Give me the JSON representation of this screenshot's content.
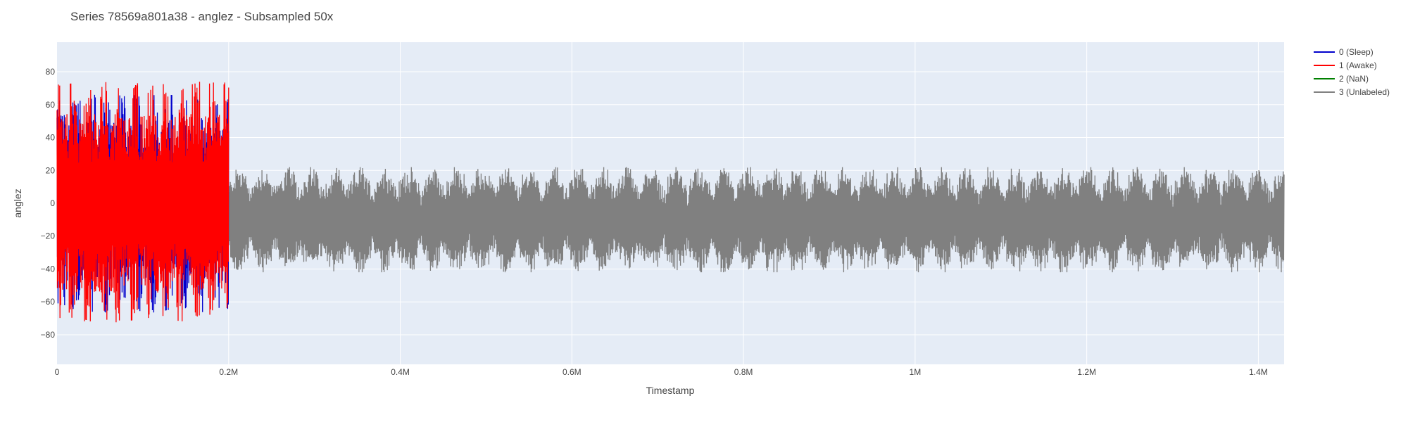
{
  "chart_data": {
    "type": "line",
    "title": "Series 78569a801a38 - anglez - Subsampled 50x",
    "xlabel": "Timestamp",
    "ylabel": "anglez",
    "xlim": [
      0,
      1430000
    ],
    "ylim": [
      -98,
      98
    ],
    "x_ticks": [
      {
        "value": 0,
        "label": "0"
      },
      {
        "value": 200000,
        "label": "0.2M"
      },
      {
        "value": 400000,
        "label": "0.4M"
      },
      {
        "value": 600000,
        "label": "0.6M"
      },
      {
        "value": 800000,
        "label": "0.8M"
      },
      {
        "value": 1000000,
        "label": "1M"
      },
      {
        "value": 1200000,
        "label": "1.2M"
      },
      {
        "value": 1400000,
        "label": "1.4M"
      }
    ],
    "y_ticks": [
      {
        "value": 80,
        "label": "80"
      },
      {
        "value": 60,
        "label": "60"
      },
      {
        "value": 40,
        "label": "40"
      },
      {
        "value": 20,
        "label": "20"
      },
      {
        "value": 0,
        "label": "0"
      },
      {
        "value": -20,
        "label": "−20"
      },
      {
        "value": -40,
        "label": "−40"
      },
      {
        "value": -60,
        "label": "−60"
      },
      {
        "value": -80,
        "label": "−80"
      }
    ],
    "grid": true,
    "legend_position": "top-right",
    "series": [
      {
        "name": "0 (Sleep)",
        "color": "#0000cc",
        "x_range": [
          0,
          200000
        ],
        "y_range": [
          -87,
          80
        ]
      },
      {
        "name": "1 (Awake)",
        "color": "#ff0000",
        "x_range": [
          0,
          200000
        ],
        "y_range": [
          -88,
          88
        ]
      },
      {
        "name": "2 (NaN)",
        "color": "#008000",
        "x_range": null,
        "y_range": null
      },
      {
        "name": "3 (Unlabeled)",
        "color": "#808080",
        "x_range": [
          200000,
          1430000
        ],
        "y_range": [
          -42,
          22
        ]
      }
    ]
  }
}
